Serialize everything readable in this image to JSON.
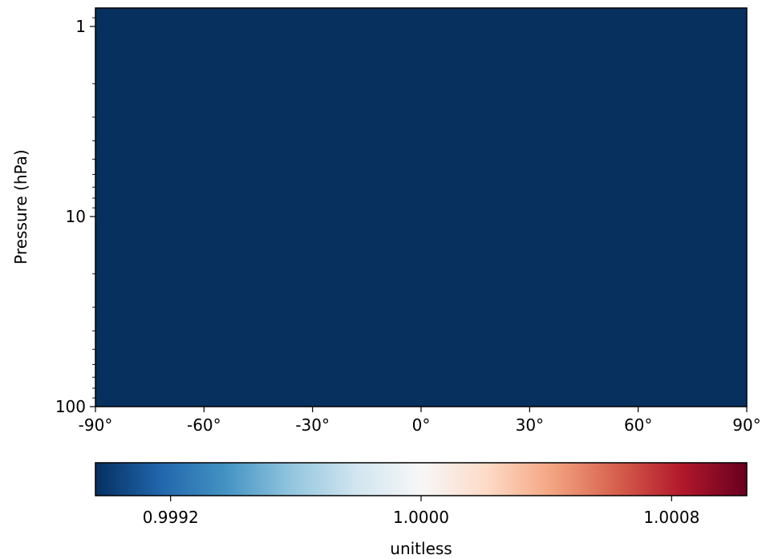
{
  "chart_data": {
    "type": "heatmap",
    "title": "",
    "xlabel": "",
    "ylabel": "Pressure (hPa)",
    "xlim": [
      -90,
      90
    ],
    "ylim": [
      100,
      0.8
    ],
    "yscale": "log",
    "x_ticks": [
      {
        "value": -90,
        "label": "-90°"
      },
      {
        "value": -60,
        "label": "-60°"
      },
      {
        "value": -30,
        "label": "-30°"
      },
      {
        "value": 0,
        "label": "0°"
      },
      {
        "value": 30,
        "label": "30°"
      },
      {
        "value": 60,
        "label": "60°"
      },
      {
        "value": 90,
        "label": "90°"
      }
    ],
    "y_ticks": [
      {
        "value": 1,
        "label": "1"
      },
      {
        "value": 10,
        "label": "10"
      },
      {
        "value": 100,
        "label": "100"
      }
    ],
    "y_minor_ticks": [
      0.9,
      2,
      3,
      4,
      5,
      6,
      7,
      8,
      9,
      20,
      30,
      40,
      50,
      60,
      70,
      80,
      90
    ],
    "field_color": "#08305f",
    "colorbar": {
      "label": "unitless",
      "colormap": "RdBu_r",
      "range": [
        0.99896,
        1.00104
      ],
      "ticks": [
        {
          "value": 0.9992,
          "label": "0.9992"
        },
        {
          "value": 1.0,
          "label": "1.0000"
        },
        {
          "value": 1.0008,
          "label": "1.0008"
        }
      ]
    }
  }
}
